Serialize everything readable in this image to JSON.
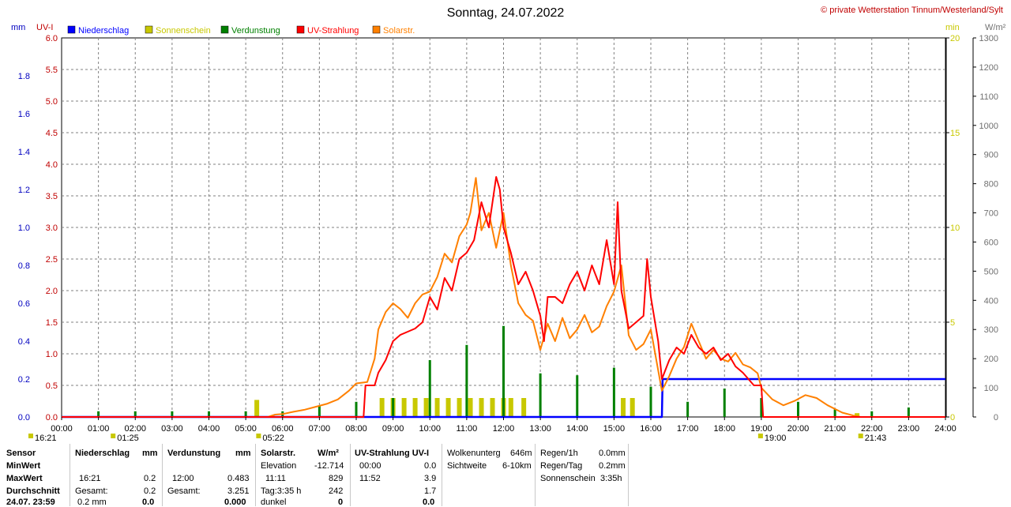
{
  "chart_data": {
    "type": "line",
    "title": "Sonntag, 24.07.2022",
    "credit": "© private Wetterstation Tinnum/Westerland/Sylt",
    "axes": {
      "mm": {
        "label": "mm",
        "ticks": [
          "0.0",
          "0.2",
          "0.4",
          "0.6",
          "0.8",
          "1.0",
          "1.2",
          "1.4",
          "1.6",
          "1.8"
        ],
        "range": [
          0,
          2.0
        ],
        "color": "#0000c0"
      },
      "uv": {
        "label": "UV-I",
        "ticks": [
          "0.0",
          "0.5",
          "1.0",
          "1.5",
          "2.0",
          "2.5",
          "3.0",
          "3.5",
          "4.0",
          "4.5",
          "5.0",
          "5.5",
          "6.0"
        ],
        "range": [
          0,
          6.0
        ],
        "color": "#c00000"
      },
      "min": {
        "label": "min",
        "ticks": [
          "0",
          "5",
          "10",
          "15",
          "20"
        ],
        "range": [
          0,
          20
        ],
        "color": "#c8c800"
      },
      "wm2": {
        "label": "W/m²",
        "ticks": [
          "0",
          "100",
          "200",
          "300",
          "400",
          "500",
          "600",
          "700",
          "800",
          "900",
          "1000",
          "1100",
          "1200",
          "1300"
        ],
        "range": [
          0,
          1300
        ],
        "color": "#707070"
      }
    },
    "x_ticks": [
      "00:00",
      "01:00",
      "02:00",
      "03:00",
      "04:00",
      "05:00",
      "06:00",
      "07:00",
      "08:00",
      "09:00",
      "10:00",
      "11:00",
      "12:00",
      "13:00",
      "14:00",
      "15:00",
      "16:00",
      "17:00",
      "18:00",
      "19:00",
      "20:00",
      "21:00",
      "22:00",
      "23:00",
      "24:00"
    ],
    "x_range_hours": [
      0,
      24
    ],
    "legend": [
      {
        "name": "Niederschlag",
        "color": "#0000ff"
      },
      {
        "name": "Sonnenschein",
        "color": "#c8c800"
      },
      {
        "name": "Verdunstung",
        "color": "#008000"
      },
      {
        "name": "UV-Strahlung",
        "color": "#ff0000"
      },
      {
        "name": "Solarstr.",
        "color": "#ff8000"
      }
    ],
    "markers": [
      {
        "time": "16:21",
        "hour": 0
      },
      {
        "time": "01:25",
        "hour": 1.42
      },
      {
        "time": "05:22",
        "hour": 5.37
      },
      {
        "time": "19:00",
        "hour": 19.0
      },
      {
        "time": "21:43",
        "hour": 21.72
      }
    ],
    "series": [
      {
        "name": "Niederschlag",
        "axis": "mm",
        "unit": "mm",
        "style": "step",
        "points": [
          [
            0,
            0
          ],
          [
            16.3,
            0
          ],
          [
            16.32,
            0.2
          ],
          [
            24,
            0.2
          ]
        ]
      },
      {
        "name": "Solarstr.",
        "axis": "wm2",
        "unit": "W/m²",
        "style": "line",
        "points": [
          [
            0,
            0
          ],
          [
            5.6,
            0
          ],
          [
            5.8,
            8
          ],
          [
            6.0,
            10
          ],
          [
            6.3,
            18
          ],
          [
            6.6,
            25
          ],
          [
            6.9,
            35
          ],
          [
            7.2,
            45
          ],
          [
            7.5,
            60
          ],
          [
            7.8,
            90
          ],
          [
            8.0,
            115
          ],
          [
            8.3,
            120
          ],
          [
            8.5,
            200
          ],
          [
            8.6,
            300
          ],
          [
            8.8,
            360
          ],
          [
            9.0,
            390
          ],
          [
            9.2,
            370
          ],
          [
            9.4,
            340
          ],
          [
            9.6,
            390
          ],
          [
            9.8,
            420
          ],
          [
            10.0,
            430
          ],
          [
            10.2,
            480
          ],
          [
            10.4,
            560
          ],
          [
            10.6,
            530
          ],
          [
            10.8,
            620
          ],
          [
            11.0,
            660
          ],
          [
            11.1,
            700
          ],
          [
            11.25,
            820
          ],
          [
            11.4,
            640
          ],
          [
            11.6,
            700
          ],
          [
            11.8,
            580
          ],
          [
            12.0,
            700
          ],
          [
            12.2,
            520
          ],
          [
            12.4,
            390
          ],
          [
            12.6,
            350
          ],
          [
            12.8,
            330
          ],
          [
            13.0,
            230
          ],
          [
            13.2,
            320
          ],
          [
            13.4,
            260
          ],
          [
            13.6,
            340
          ],
          [
            13.8,
            270
          ],
          [
            14.0,
            300
          ],
          [
            14.2,
            350
          ],
          [
            14.4,
            290
          ],
          [
            14.6,
            310
          ],
          [
            14.8,
            380
          ],
          [
            15.0,
            430
          ],
          [
            15.2,
            520
          ],
          [
            15.4,
            280
          ],
          [
            15.6,
            230
          ],
          [
            15.8,
            250
          ],
          [
            16.0,
            300
          ],
          [
            16.2,
            160
          ],
          [
            16.3,
            90
          ],
          [
            16.5,
            140
          ],
          [
            16.7,
            200
          ],
          [
            16.9,
            240
          ],
          [
            17.1,
            320
          ],
          [
            17.3,
            260
          ],
          [
            17.5,
            200
          ],
          [
            17.7,
            230
          ],
          [
            17.9,
            200
          ],
          [
            18.1,
            190
          ],
          [
            18.3,
            220
          ],
          [
            18.5,
            180
          ],
          [
            18.7,
            170
          ],
          [
            18.9,
            150
          ],
          [
            19.0,
            100
          ],
          [
            19.3,
            60
          ],
          [
            19.6,
            40
          ],
          [
            19.9,
            55
          ],
          [
            20.2,
            75
          ],
          [
            20.5,
            65
          ],
          [
            20.8,
            40
          ],
          [
            21.2,
            15
          ],
          [
            21.5,
            5
          ],
          [
            21.7,
            0
          ],
          [
            24,
            0
          ]
        ]
      },
      {
        "name": "UV-Strahlung",
        "axis": "uv",
        "unit": "UV-I",
        "style": "line",
        "points": [
          [
            0,
            0
          ],
          [
            8.2,
            0
          ],
          [
            8.25,
            0.5
          ],
          [
            8.5,
            0.5
          ],
          [
            8.6,
            0.7
          ],
          [
            8.8,
            0.9
          ],
          [
            9.0,
            1.2
          ],
          [
            9.2,
            1.3
          ],
          [
            9.4,
            1.35
          ],
          [
            9.6,
            1.4
          ],
          [
            9.8,
            1.5
          ],
          [
            10.0,
            1.9
          ],
          [
            10.2,
            1.7
          ],
          [
            10.4,
            2.2
          ],
          [
            10.6,
            2.0
          ],
          [
            10.8,
            2.5
          ],
          [
            11.0,
            2.6
          ],
          [
            11.2,
            2.8
          ],
          [
            11.4,
            3.4
          ],
          [
            11.6,
            3.0
          ],
          [
            11.8,
            3.8
          ],
          [
            11.9,
            3.6
          ],
          [
            12.0,
            3.0
          ],
          [
            12.2,
            2.6
          ],
          [
            12.4,
            2.1
          ],
          [
            12.6,
            2.3
          ],
          [
            12.8,
            2.0
          ],
          [
            13.0,
            1.6
          ],
          [
            13.1,
            1.2
          ],
          [
            13.2,
            1.9
          ],
          [
            13.4,
            1.9
          ],
          [
            13.6,
            1.8
          ],
          [
            13.8,
            2.1
          ],
          [
            14.0,
            2.3
          ],
          [
            14.2,
            2.0
          ],
          [
            14.4,
            2.4
          ],
          [
            14.6,
            2.1
          ],
          [
            14.8,
            2.8
          ],
          [
            15.0,
            2.1
          ],
          [
            15.1,
            3.4
          ],
          [
            15.2,
            2.0
          ],
          [
            15.4,
            1.4
          ],
          [
            15.6,
            1.5
          ],
          [
            15.8,
            1.6
          ],
          [
            15.9,
            2.5
          ],
          [
            16.0,
            1.9
          ],
          [
            16.2,
            1.2
          ],
          [
            16.3,
            0.6
          ],
          [
            16.5,
            0.9
          ],
          [
            16.7,
            1.1
          ],
          [
            16.9,
            1.0
          ],
          [
            17.1,
            1.3
          ],
          [
            17.3,
            1.1
          ],
          [
            17.5,
            1.0
          ],
          [
            17.7,
            1.1
          ],
          [
            17.9,
            0.9
          ],
          [
            18.1,
            1.0
          ],
          [
            18.3,
            0.8
          ],
          [
            18.5,
            0.7
          ],
          [
            18.8,
            0.5
          ],
          [
            19.0,
            0.5
          ],
          [
            19.05,
            0
          ],
          [
            24,
            0
          ]
        ]
      },
      {
        "name": "Sonnenschein",
        "axis": "min",
        "unit": "min",
        "style": "bars",
        "bars": [
          [
            5.3,
            0.9
          ],
          [
            8.7,
            1.0
          ],
          [
            9.0,
            1.0
          ],
          [
            9.3,
            1.0
          ],
          [
            9.6,
            1.0
          ],
          [
            9.9,
            1.0
          ],
          [
            10.2,
            1.0
          ],
          [
            10.5,
            1.0
          ],
          [
            10.8,
            1.0
          ],
          [
            11.1,
            1.0
          ],
          [
            11.4,
            1.0
          ],
          [
            11.7,
            1.0
          ],
          [
            12.0,
            1.0
          ],
          [
            12.2,
            1.0
          ],
          [
            12.55,
            1.0
          ],
          [
            15.25,
            1.0
          ],
          [
            15.5,
            1.0
          ],
          [
            21.6,
            0.2
          ]
        ]
      },
      {
        "name": "Verdunstung",
        "axis": "min",
        "unit": "min",
        "style": "bars",
        "bars": [
          [
            1.0,
            0.3
          ],
          [
            2.0,
            0.3
          ],
          [
            3.0,
            0.3
          ],
          [
            4.0,
            0.3
          ],
          [
            5.0,
            0.3
          ],
          [
            6.0,
            0.3
          ],
          [
            7.0,
            0.6
          ],
          [
            8.0,
            0.8
          ],
          [
            9.0,
            1.0
          ],
          [
            10.0,
            3.0
          ],
          [
            11.0,
            3.8
          ],
          [
            12.0,
            4.8
          ],
          [
            13.0,
            2.3
          ],
          [
            14.0,
            2.2
          ],
          [
            15.0,
            2.6
          ],
          [
            16.0,
            1.6
          ],
          [
            17.0,
            0.8
          ],
          [
            18.0,
            1.5
          ],
          [
            19.0,
            1.0
          ],
          [
            20.0,
            0.8
          ],
          [
            21.0,
            0.4
          ],
          [
            22.0,
            0.3
          ],
          [
            23.0,
            0.5
          ]
        ]
      }
    ]
  },
  "table": {
    "row_labels": {
      "sensor": "Sensor",
      "min": "MinWert",
      "max": "MaxWert",
      "avg": "Durchschnitt",
      "last": "24.07. 23:59"
    },
    "niederschlag": {
      "title": "Niederschlag",
      "unit": "mm",
      "max_time": "16:21",
      "max_val": "0.2",
      "sum_label": "Gesamt:",
      "sum_val": "0.2",
      "last_val": "0.2 mm",
      "last_tot": "0.0"
    },
    "verdunstung": {
      "title": "Verdunstung",
      "unit": "mm",
      "max_time": "12:00",
      "max_val": "0.483",
      "sum_label": "Gesamt:",
      "sum_val": "3.251",
      "last_val": "0.000"
    },
    "solar": {
      "title": "Solarstr.",
      "unit": "W/m²",
      "elev_label": "Elevation",
      "elev_val": "-12.714",
      "max_time": "11:11",
      "max_val": "829",
      "day_label": "Tag:3:35 h",
      "day_val": "242",
      "dark_label": "dunkel",
      "dark_val": "0"
    },
    "uv": {
      "title": "UV-Strahlung UV-I",
      "min_time": "00:00",
      "min_val": "0.0",
      "max_time": "11:52",
      "max_val": "3.9",
      "avg_val": "1.7",
      "last_val": "0.0"
    },
    "cloud": {
      "base_label": "Wolkenunterg",
      "base_val": "646m",
      "vis_label": "Sichtweite",
      "vis_val": "6-10km"
    },
    "rain": {
      "h_label": "Regen/1h",
      "h_val": "0.0mm",
      "d_label": "Regen/Tag",
      "d_val": "0.2mm",
      "sun_label": "Sonnenschein",
      "sun_val": "3:35h"
    }
  }
}
